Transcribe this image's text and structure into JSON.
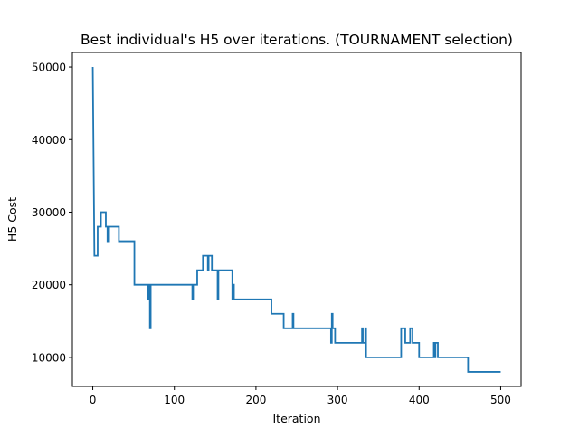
{
  "chart_data": {
    "type": "line",
    "title": "Best individual's H5 over iterations. (TOURNAMENT selection)",
    "xlabel": "Iteration",
    "ylabel": "H5 Cost",
    "xlim": [
      -25,
      525
    ],
    "ylim": [
      6000,
      52000
    ],
    "x_ticks": [
      0,
      100,
      200,
      300,
      400,
      500
    ],
    "y_ticks": [
      10000,
      20000,
      30000,
      40000,
      50000
    ],
    "x_tick_labels": [
      "0",
      "100",
      "200",
      "300",
      "400",
      "500"
    ],
    "y_tick_labels": [
      "10000",
      "20000",
      "30000",
      "40000",
      "50000"
    ],
    "grid": false,
    "line_color": "#1f77b4",
    "series": [
      {
        "x": [
          0,
          2,
          2,
          6,
          6,
          10,
          10,
          12,
          12,
          16,
          16,
          18,
          18,
          20,
          20,
          32,
          32,
          51,
          51,
          68,
          68,
          69,
          69,
          70,
          70,
          71,
          71,
          122,
          122,
          123,
          123,
          128,
          128,
          135,
          135,
          141,
          141,
          142,
          142,
          146,
          146,
          147,
          147,
          153,
          153,
          154,
          154,
          155,
          155,
          171,
          171,
          172,
          172,
          173,
          173,
          217,
          217,
          218,
          218,
          219,
          219,
          234,
          234,
          245,
          245,
          246,
          246,
          280,
          280,
          292,
          292,
          293,
          293,
          294,
          294,
          297,
          297,
          330,
          330,
          331,
          331,
          334,
          334,
          335,
          335,
          378,
          378,
          383,
          383,
          389,
          389,
          390,
          390,
          392,
          392,
          400,
          400,
          418,
          418,
          419,
          419,
          420,
          420,
          421,
          421,
          423,
          423,
          460,
          460,
          500,
          500
        ],
        "y": [
          50000,
          24000,
          24000,
          24000,
          28000,
          28000,
          30000,
          30000,
          30000,
          30000,
          28000,
          28000,
          26000,
          26000,
          28000,
          28000,
          26000,
          26000,
          20000,
          20000,
          18000,
          18000,
          20000,
          20000,
          14000,
          14000,
          20000,
          20000,
          18000,
          18000,
          20000,
          20000,
          22000,
          22000,
          24000,
          24000,
          22000,
          22000,
          24000,
          24000,
          22000,
          22000,
          22000,
          22000,
          18000,
          18000,
          22000,
          22000,
          22000,
          22000,
          18000,
          18000,
          20000,
          20000,
          18000,
          18000,
          18000,
          18000,
          18000,
          18000,
          16000,
          16000,
          14000,
          14000,
          16000,
          16000,
          14000,
          14000,
          14000,
          14000,
          12000,
          12000,
          16000,
          16000,
          14000,
          14000,
          12000,
          12000,
          14000,
          14000,
          12000,
          12000,
          14000,
          14000,
          10000,
          10000,
          14000,
          14000,
          12000,
          12000,
          14000,
          14000,
          14000,
          14000,
          12000,
          12000,
          10000,
          10000,
          12000,
          12000,
          10000,
          10000,
          12000,
          12000,
          12000,
          12000,
          10000,
          10000,
          8000,
          8000,
          8000
        ]
      }
    ]
  }
}
